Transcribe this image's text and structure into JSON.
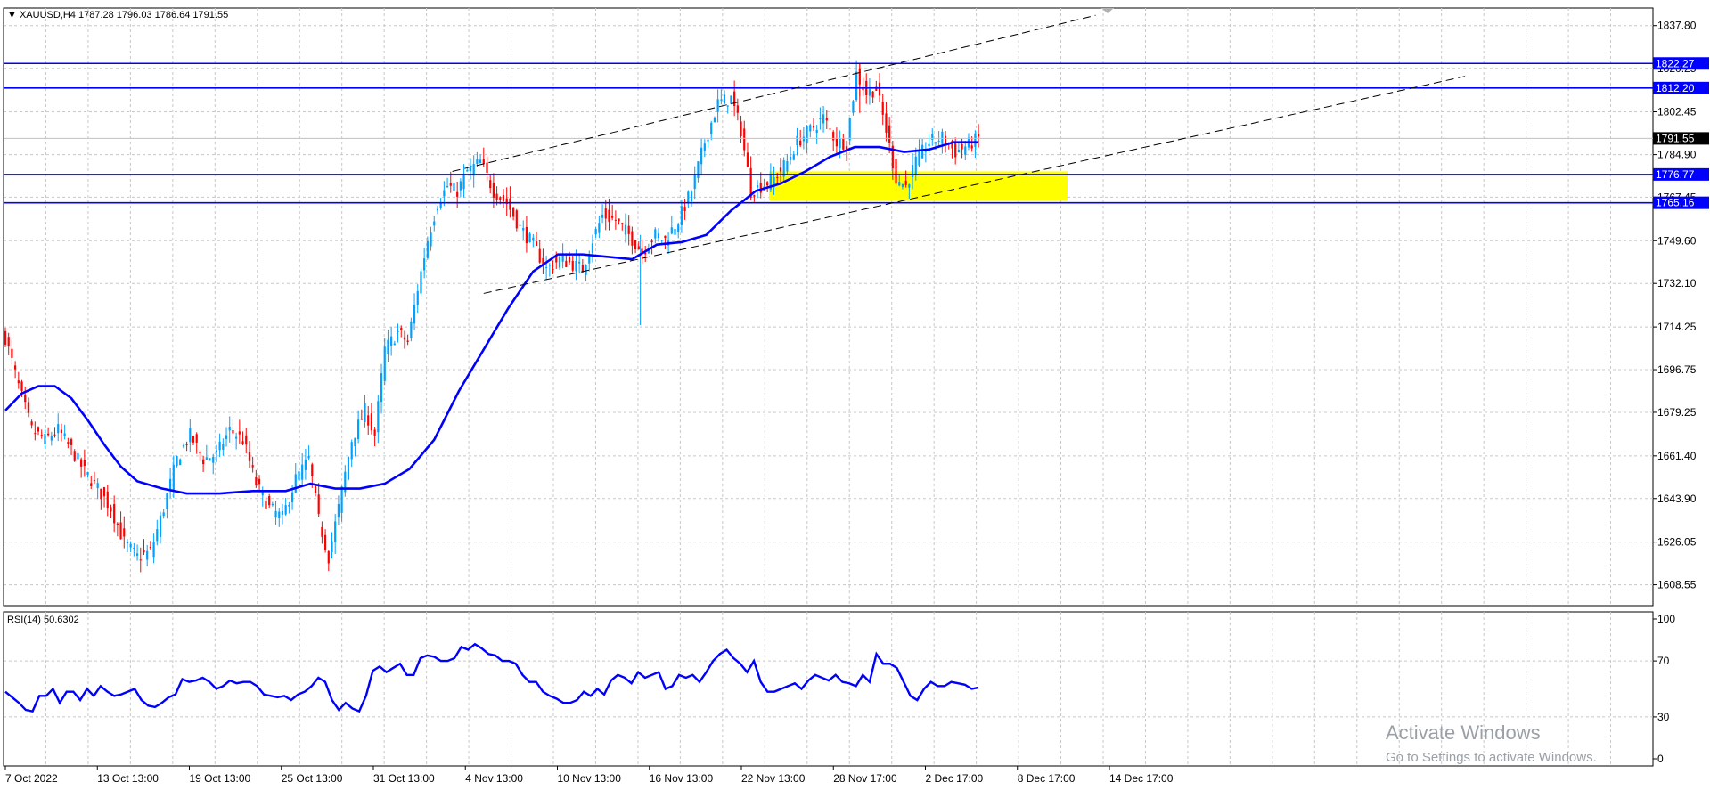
{
  "header": {
    "symbol_info": "XAUUSD,H4  1787.28 1796.03 1786.64 1791.55"
  },
  "rsi_header": {
    "label": "RSI(14) 50.6302"
  },
  "watermark": {
    "line1": "Activate Windows",
    "line2": "Go to Settings to activate Windows."
  },
  "colors": {
    "bull": "#00a0ff",
    "bear": "#ff0000",
    "ma": "#0000ff",
    "level": "#0000ff",
    "zone": "#ffff00",
    "trend": "#000000",
    "grid": "#c8c8c8"
  },
  "chart_data": [
    {
      "type": "candlestick",
      "title": "XAUUSD,H4",
      "ohlc_last": {
        "open": 1787.28,
        "high": 1796.03,
        "low": 1786.64,
        "close": 1791.55
      },
      "ylim": [
        1600.0,
        1845.0
      ],
      "y_ticks": [
        "1837.80",
        "1820.25",
        "1802.45",
        "1784.90",
        "1767.45",
        "1749.60",
        "1732.10",
        "1714.25",
        "1696.75",
        "1679.25",
        "1661.40",
        "1643.90",
        "1626.05",
        "1608.55"
      ],
      "x_ticks": [
        "7 Oct 2022",
        "13 Oct 13:00",
        "19 Oct 13:00",
        "25 Oct 13:00",
        "31 Oct 13:00",
        "4 Nov 13:00",
        "10 Nov 13:00",
        "16 Nov 13:00",
        "22 Nov 13:00",
        "28 Nov 17:00",
        "2 Dec 17:00",
        "8 Dec 17:00",
        "14 Dec 17:00"
      ],
      "horizontal_levels": [
        {
          "value": 1822.27,
          "label": "1822.27"
        },
        {
          "value": 1812.2,
          "label": "1812.20"
        },
        {
          "value": 1776.77,
          "label": "1776.77"
        },
        {
          "value": 1765.16,
          "label": "1765.16"
        }
      ],
      "current_price": {
        "value": 1791.55,
        "label": "1791.55"
      },
      "price_path": [
        [
          0,
          1710
        ],
        [
          8,
          1690
        ],
        [
          16,
          1672
        ],
        [
          24,
          1668
        ],
        [
          32,
          1672
        ],
        [
          40,
          1664
        ],
        [
          48,
          1655
        ],
        [
          56,
          1648
        ],
        [
          64,
          1640
        ],
        [
          72,
          1626
        ],
        [
          80,
          1620
        ],
        [
          88,
          1622
        ],
        [
          96,
          1640
        ],
        [
          104,
          1660
        ],
        [
          112,
          1670
        ],
        [
          120,
          1660
        ],
        [
          128,
          1662
        ],
        [
          136,
          1672
        ],
        [
          144,
          1668
        ],
        [
          152,
          1650
        ],
        [
          160,
          1640
        ],
        [
          168,
          1636
        ],
        [
          176,
          1652
        ],
        [
          184,
          1660
        ],
        [
          190,
          1635
        ],
        [
          196,
          1620
        ],
        [
          202,
          1640
        ],
        [
          210,
          1668
        ],
        [
          218,
          1680
        ],
        [
          224,
          1670
        ],
        [
          230,
          1705
        ],
        [
          238,
          1712
        ],
        [
          244,
          1708
        ],
        [
          250,
          1730
        ],
        [
          256,
          1750
        ],
        [
          262,
          1765
        ],
        [
          268,
          1772
        ],
        [
          274,
          1770
        ],
        [
          280,
          1778
        ],
        [
          288,
          1782
        ],
        [
          296,
          1770
        ],
        [
          304,
          1765
        ],
        [
          312,
          1755
        ],
        [
          320,
          1748
        ],
        [
          328,
          1738
        ],
        [
          336,
          1742
        ],
        [
          344,
          1740
        ],
        [
          350,
          1738
        ],
        [
          356,
          1750
        ],
        [
          362,
          1760
        ],
        [
          370,
          1758
        ],
        [
          378,
          1752
        ],
        [
          386,
          1745
        ],
        [
          394,
          1752
        ],
        [
          400,
          1750
        ],
        [
          408,
          1758
        ],
        [
          416,
          1770
        ],
        [
          424,
          1790
        ],
        [
          432,
          1806
        ],
        [
          440,
          1808
        ],
        [
          446,
          1795
        ],
        [
          452,
          1770
        ],
        [
          458,
          1772
        ],
        [
          466,
          1775
        ],
        [
          474,
          1782
        ],
        [
          480,
          1790
        ],
        [
          488,
          1795
        ],
        [
          496,
          1800
        ],
        [
          504,
          1790
        ],
        [
          510,
          1790
        ],
        [
          516,
          1818
        ],
        [
          522,
          1810
        ],
        [
          528,
          1812
        ],
        [
          534,
          1795
        ],
        [
          540,
          1775
        ],
        [
          546,
          1772
        ],
        [
          552,
          1782
        ],
        [
          560,
          1790
        ],
        [
          568,
          1792
        ],
        [
          576,
          1786
        ],
        [
          584,
          1789
        ],
        [
          590,
          1791.55
        ]
      ],
      "ma_path": [
        [
          0,
          1680
        ],
        [
          10,
          1687
        ],
        [
          20,
          1690
        ],
        [
          30,
          1690
        ],
        [
          40,
          1685
        ],
        [
          50,
          1676
        ],
        [
          60,
          1666
        ],
        [
          70,
          1657
        ],
        [
          80,
          1651
        ],
        [
          95,
          1648
        ],
        [
          110,
          1646
        ],
        [
          130,
          1646
        ],
        [
          150,
          1647
        ],
        [
          170,
          1647
        ],
        [
          185,
          1650
        ],
        [
          200,
          1648
        ],
        [
          215,
          1648
        ],
        [
          230,
          1650
        ],
        [
          245,
          1656
        ],
        [
          260,
          1668
        ],
        [
          275,
          1688
        ],
        [
          290,
          1705
        ],
        [
          305,
          1722
        ],
        [
          320,
          1737
        ],
        [
          335,
          1744
        ],
        [
          350,
          1744
        ],
        [
          365,
          1743
        ],
        [
          380,
          1742
        ],
        [
          395,
          1748
        ],
        [
          410,
          1749
        ],
        [
          425,
          1752
        ],
        [
          440,
          1762
        ],
        [
          455,
          1770
        ],
        [
          470,
          1773
        ],
        [
          485,
          1778
        ],
        [
          500,
          1784
        ],
        [
          515,
          1788
        ],
        [
          530,
          1788
        ],
        [
          545,
          1786
        ],
        [
          560,
          1787
        ],
        [
          575,
          1790
        ],
        [
          590,
          1790
        ]
      ],
      "trendlines": [
        {
          "from": [
            271,
            1778
          ],
          "to": [
            661,
            1842
          ]
        },
        {
          "from": [
            290,
            1728
          ],
          "to": [
            885,
            1817
          ]
        }
      ],
      "zone": {
        "x_from": 463,
        "x_to": 644,
        "y_low": 1766,
        "y_high": 1778
      }
    },
    {
      "type": "line",
      "title": "RSI(14)",
      "value": 50.6302,
      "ylim": [
        0,
        100
      ],
      "y_ticks": [
        "100",
        "70",
        "30",
        "0"
      ],
      "values": [
        48,
        44,
        40,
        35,
        34,
        45,
        45,
        50,
        40,
        48,
        48,
        42,
        50,
        45,
        52,
        48,
        45,
        46,
        48,
        50,
        42,
        38,
        37,
        40,
        44,
        46,
        57,
        55,
        56,
        58,
        55,
        50,
        52,
        56,
        54,
        55,
        55,
        52,
        46,
        45,
        44,
        45,
        42,
        46,
        48,
        52,
        58,
        55,
        42,
        35,
        40,
        36,
        34,
        45,
        63,
        66,
        62,
        65,
        68,
        60,
        60,
        72,
        74,
        73,
        70,
        70,
        72,
        80,
        78,
        82,
        79,
        75,
        74,
        70,
        70,
        68,
        60,
        55,
        55,
        48,
        45,
        43,
        40,
        40,
        42,
        48,
        45,
        50,
        46,
        56,
        60,
        58,
        54,
        62,
        58,
        60,
        62,
        50,
        52,
        60,
        58,
        60,
        55,
        62,
        70,
        75,
        78,
        72,
        68,
        62,
        70,
        55,
        48,
        48,
        50,
        52,
        54,
        50,
        56,
        60,
        58,
        56,
        60,
        55,
        54,
        52,
        60,
        55,
        75,
        68,
        68,
        65,
        55,
        45,
        42,
        50,
        55,
        52,
        52,
        55,
        54,
        53,
        50,
        51
      ]
    }
  ]
}
